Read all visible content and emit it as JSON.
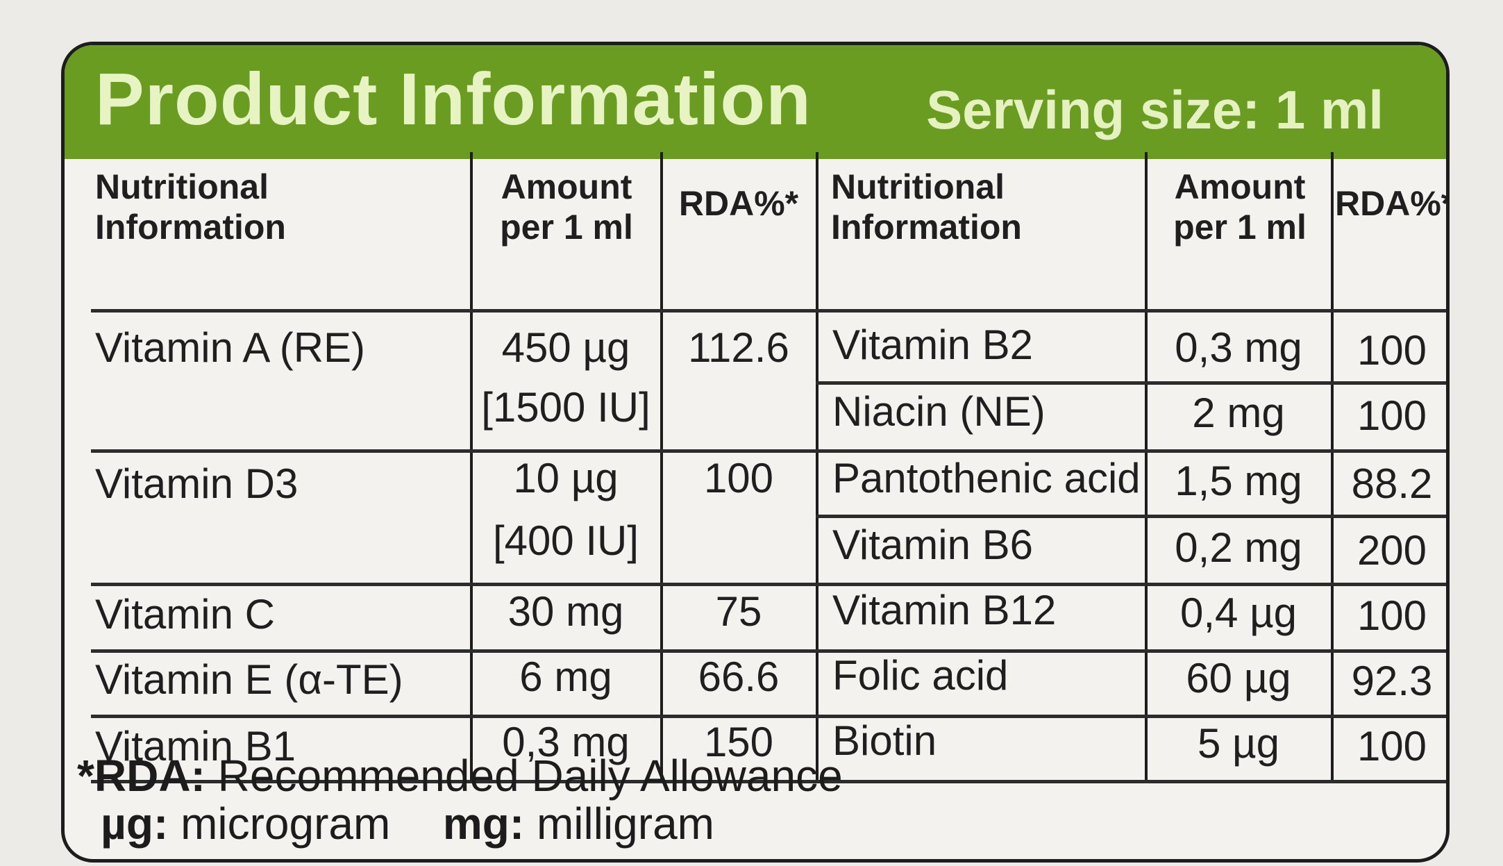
{
  "header": {
    "title": "Product Information",
    "serving": "Serving size: 1 ml"
  },
  "columns": {
    "nutritional": "Nutritional Information",
    "amount": "Amount per 1 ml",
    "rda": "RDA%*"
  },
  "left_rows": [
    {
      "name": "Vitamin A (RE)",
      "amount": "450 µg",
      "amount_extra": "[1500 IU]",
      "rda": "112.6"
    },
    {
      "name": "Vitamin D3",
      "amount": "10 µg",
      "amount_extra": "[400 IU]",
      "rda": "100"
    },
    {
      "name": "Vitamin C",
      "amount": "30 mg",
      "amount_extra": "",
      "rda": "75"
    },
    {
      "name": "Vitamin E (α-TE)",
      "amount": "6 mg",
      "amount_extra": "",
      "rda": "66.6"
    },
    {
      "name": "Vitamin B1",
      "amount": "0,3 mg",
      "amount_extra": "",
      "rda": "150"
    }
  ],
  "right_rows": [
    {
      "name": "Vitamin B2",
      "amount": "0,3 mg",
      "rda": "100"
    },
    {
      "name": "Niacin (NE)",
      "amount": "2 mg",
      "rda": "100"
    },
    {
      "name": "Pantothenic acid",
      "amount": "1,5 mg",
      "rda": "88.2"
    },
    {
      "name": "Vitamin B6",
      "amount": "0,2 mg",
      "rda": "200"
    },
    {
      "name": "Vitamin B12",
      "amount": "0,4 µg",
      "rda": "100"
    },
    {
      "name": "Folic acid",
      "amount": "60 µg",
      "rda": "92.3"
    },
    {
      "name": "Biotin",
      "amount": "5 µg",
      "rda": "100"
    }
  ],
  "footer": {
    "rda_abbr": "*RDA:",
    "rda_text": "Recommended Daily Allowance",
    "ug_abbr": "µg:",
    "ug_text": "microgram",
    "mg_abbr": "mg:",
    "mg_text": "milligram"
  },
  "colors": {
    "header_green": "#6a9c22",
    "header_text": "#e7f3c3",
    "ink": "#1e1e1e"
  }
}
